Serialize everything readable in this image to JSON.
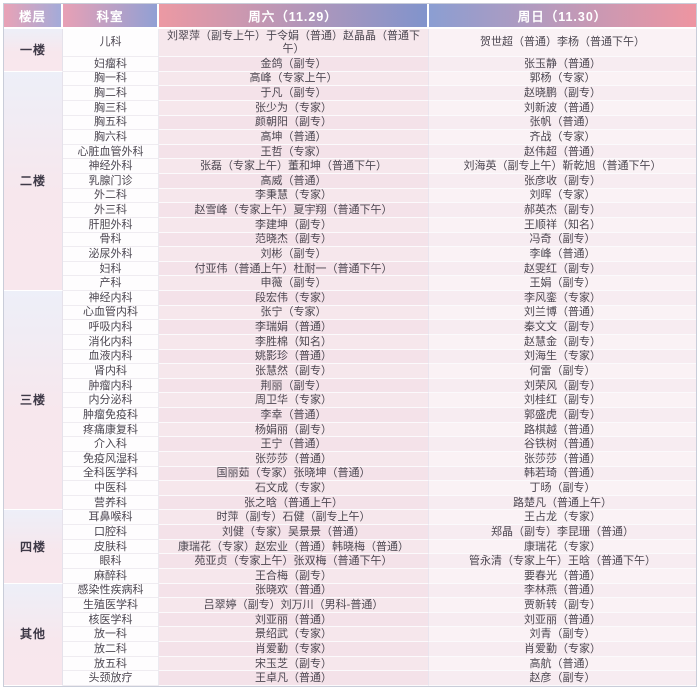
{
  "table": {
    "columns": {
      "floor": "楼层",
      "dept": "科室",
      "sat": "周六（11.29）",
      "sun": "周日（11.30）"
    },
    "groups": [
      {
        "floor": "一楼",
        "rows": [
          {
            "dept": "儿科",
            "sat": "刘翠萍（副专上午）于令娟（普通）赵晶晶（普通下午）",
            "sun": "贺世超（普通）李杨（普通下午）"
          },
          {
            "dept": "妇瘤科",
            "sat": "金鸽（副专）",
            "sun": "张玉静（普通）"
          }
        ]
      },
      {
        "floor": "二楼",
        "rows": [
          {
            "dept": "胸一科",
            "sat": "高峰（专家上午）",
            "sun": "郭杨（专家）"
          },
          {
            "dept": "胸二科",
            "sat": "于凡（副专）",
            "sun": "赵晓鹏（副专）"
          },
          {
            "dept": "胸三科",
            "sat": "张少为（专家）",
            "sun": "刘新波（普通）"
          },
          {
            "dept": "胸五科",
            "sat": "颜朝阳（副专）",
            "sun": "张帆（普通）"
          },
          {
            "dept": "胸六科",
            "sat": "高坤（普通）",
            "sun": "齐战（专家）"
          },
          {
            "dept": "心脏血管外科",
            "sat": "王哲（专家）",
            "sun": "赵伟超（普通）"
          },
          {
            "dept": "神经外科",
            "sat": "张磊（专家上午）董和坤（普通下午）",
            "sun": "刘海英（副专上午）靳乾旭（普通下午）"
          },
          {
            "dept": "乳腺门诊",
            "sat": "高威（普通）",
            "sun": "张彦收（副专）"
          },
          {
            "dept": "外二科",
            "sat": "李秉慧（专家）",
            "sun": "刘晖（专家）"
          },
          {
            "dept": "外三科",
            "sat": "赵雪峰（专家上午）夏宇翔（普通下午）",
            "sun": "郝英杰（副专）"
          },
          {
            "dept": "肝胆外科",
            "sat": "李建坤（副专）",
            "sun": "王顺祥（知名）"
          },
          {
            "dept": "骨科",
            "sat": "范晓杰（副专）",
            "sun": "冯奇（副专）"
          },
          {
            "dept": "泌尿外科",
            "sat": "刘彬（副专）",
            "sun": "李峰（普通）"
          },
          {
            "dept": "妇科",
            "sat": "付亚伟（普通上午）杜耐一（普通下午）",
            "sun": "赵雯红（副专）"
          },
          {
            "dept": "产科",
            "sat": "申薇（副专）",
            "sun": "王娟（副专）"
          }
        ]
      },
      {
        "floor": "三楼",
        "rows": [
          {
            "dept": "神经内科",
            "sat": "段宏伟（专家）",
            "sun": "李风銮（专家）"
          },
          {
            "dept": "心血管内科",
            "sat": "张宁（专家）",
            "sun": "刘兰博（普通）"
          },
          {
            "dept": "呼吸内科",
            "sat": "李瑞娟（普通）",
            "sun": "秦文文（副专）"
          },
          {
            "dept": "消化内科",
            "sat": "李胜棉（知名）",
            "sun": "赵慧金（副专）"
          },
          {
            "dept": "血液内科",
            "sat": "姚影珍（普通）",
            "sun": "刘海生（专家）"
          },
          {
            "dept": "肾内科",
            "sat": "张慧然（副专）",
            "sun": "何雷（副专）"
          },
          {
            "dept": "肿瘤内科",
            "sat": "荆丽（副专）",
            "sun": "刘荣风（副专）"
          },
          {
            "dept": "内分泌科",
            "sat": "周卫华（专家）",
            "sun": "刘桂红（副专）"
          },
          {
            "dept": "肿瘤免疫科",
            "sat": "李幸（普通）",
            "sun": "郭盛虎（副专）"
          },
          {
            "dept": "疼痛康复科",
            "sat": "杨娟丽（副专）",
            "sun": "路棋越（普通）"
          },
          {
            "dept": "介入科",
            "sat": "王宁（普通）",
            "sun": "谷铁树（普通）"
          },
          {
            "dept": "免疫风湿科",
            "sat": "张莎莎（普通）",
            "sun": "张莎莎（普通）"
          },
          {
            "dept": "全科医学科",
            "sat": "国丽茹（专家）张晓坤（普通）",
            "sun": "韩若琦（普通）"
          },
          {
            "dept": "中医科",
            "sat": "石文成（专家）",
            "sun": "丁旸（副专）"
          },
          {
            "dept": "营养科",
            "sat": "张之晗（普通上午）",
            "sun": "路楚凡（普通上午）"
          }
        ]
      },
      {
        "floor": "四楼",
        "rows": [
          {
            "dept": "耳鼻喉科",
            "sat": "时萍（副专）石健（副专上午）",
            "sun": "王占龙（专家）"
          },
          {
            "dept": "口腔科",
            "sat": "刘健（专家）吴景景（普通）",
            "sun": "郑晶（副专）李昆珊（普通）"
          },
          {
            "dept": "皮肤科",
            "sat": "康瑞花（专家）赵宏业（普通）韩晓梅（普通）",
            "sun": "康瑞花（专家）"
          },
          {
            "dept": "眼科",
            "sat": "苑亚贞（专家上午）张双梅（普通下午）",
            "sun": "管永清（专家上午）王晗（普通下午）"
          },
          {
            "dept": "麻醉科",
            "sat": "王合梅（副专）",
            "sun": "要春光（普通）"
          }
        ]
      },
      {
        "floor": "其他",
        "rows": [
          {
            "dept": "感染性疾病科",
            "sat": "张晓欢（普通）",
            "sun": "李林燕（普通）"
          },
          {
            "dept": "生殖医学科",
            "sat": "吕翠婷（副专）刘万川（男科-普通）",
            "sun": "贾新转（副专）"
          },
          {
            "dept": "核医学科",
            "sat": "刘亚丽（普通）",
            "sun": "刘亚丽（普通）"
          },
          {
            "dept": "放一科",
            "sat": "景绍武（专家）",
            "sun": "刘青（副专）"
          },
          {
            "dept": "放二科",
            "sat": "肖爱勤（专家）",
            "sun": "肖爱勤（专家）"
          },
          {
            "dept": "放五科",
            "sat": "宋玉芝（副专）",
            "sun": "高航（普通）"
          },
          {
            "dept": "头颈放疗",
            "sat": "王卓凡（普通）",
            "sun": "赵彦（副专）"
          }
        ]
      }
    ]
  },
  "colors": {
    "header_pink": "#ec99a3",
    "header_blue": "#8194cc",
    "sat_row_bg": "#f6e7ec",
    "sun_row_bg": "#faf2f5",
    "floor_bg_top": "#edeff8",
    "floor_bg_bottom": "#f8e7ed",
    "body_text": "#4c4751"
  }
}
